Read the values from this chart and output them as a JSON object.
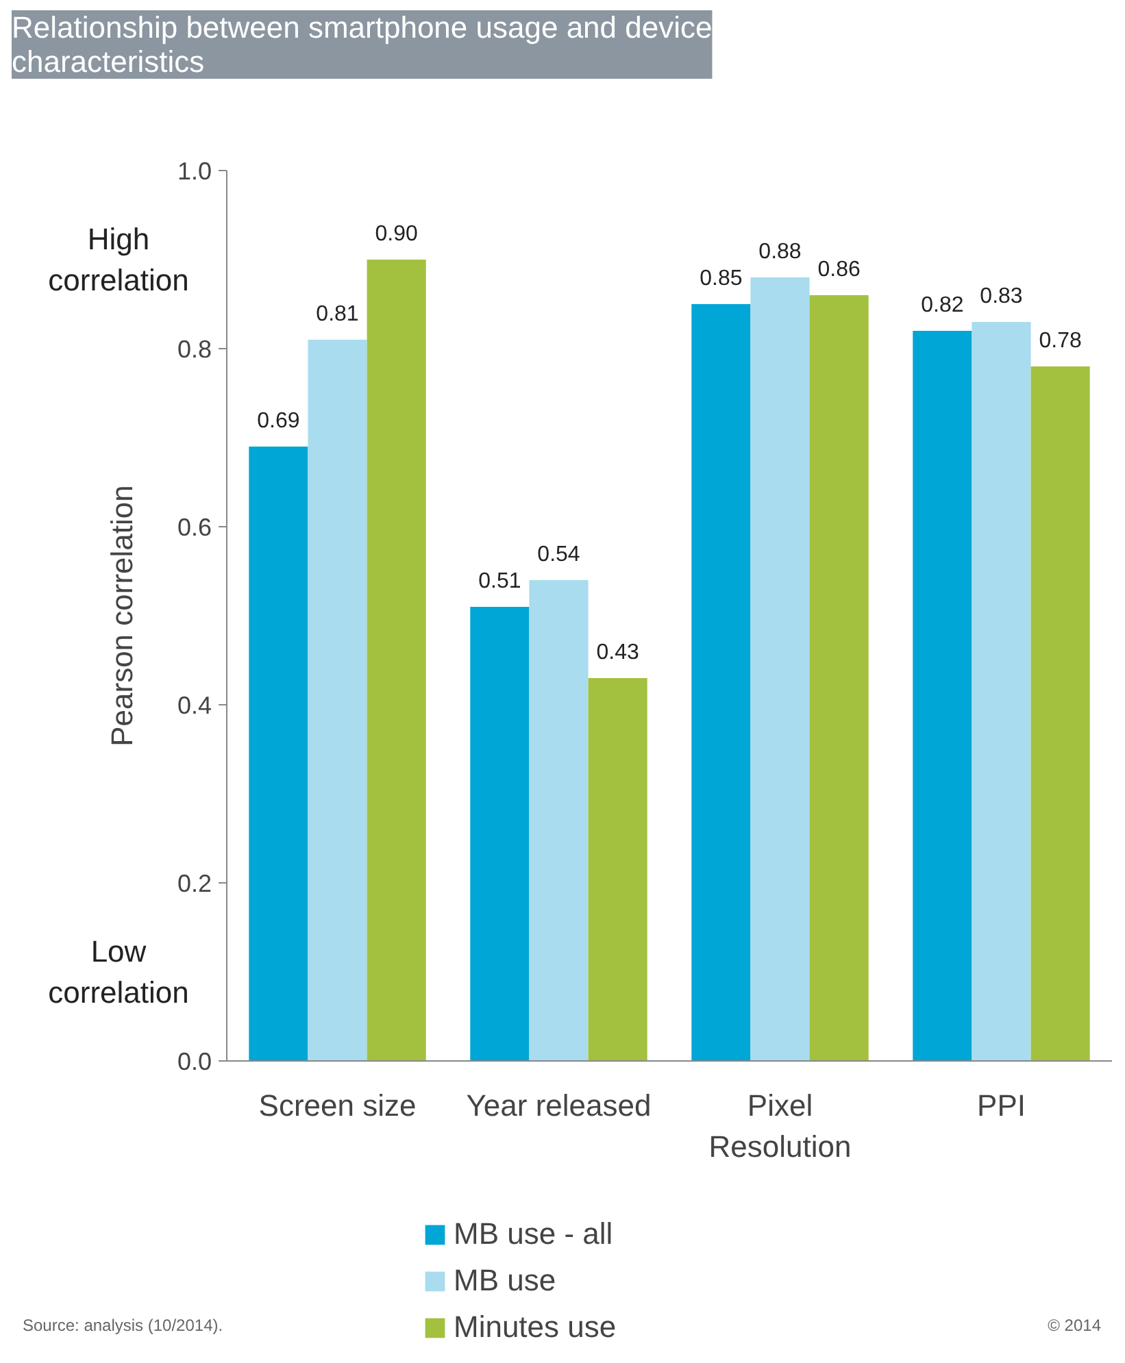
{
  "chart_data": {
    "type": "bar",
    "title": "Relationship between smartphone usage and device characteristics",
    "ylabel": "Pearson correlation",
    "categories": [
      "Screen size",
      "Year released",
      "Pixel Resolution",
      "PPI"
    ],
    "series": [
      {
        "name": "MB use - all",
        "color": "#00a6d6",
        "values": [
          0.69,
          0.51,
          0.85,
          0.82
        ],
        "value_labels": [
          "0.69",
          "0.51",
          "0.85",
          "0.82"
        ]
      },
      {
        "name": "MB use",
        "color": "#a8dcee",
        "values": [
          0.81,
          0.54,
          0.88,
          0.83
        ],
        "value_labels": [
          "0.81",
          "0.54",
          "0.88",
          "0.83"
        ]
      },
      {
        "name": "Minutes use",
        "color": "#a3c13f",
        "values": [
          0.9,
          0.43,
          0.86,
          0.78
        ],
        "value_labels": [
          "0.90",
          "0.43",
          "0.86",
          "0.78"
        ]
      }
    ],
    "ylim": [
      0,
      1.0
    ],
    "yticks": [
      {
        "value": 0,
        "label": "0.0"
      },
      0.2,
      0.4,
      0.6,
      0.8,
      {
        "value": 1.0,
        "label": "1.0"
      }
    ],
    "grid": false,
    "legend": "bottom",
    "annotations": [
      "High correlation",
      "Low correlation",
      "Source: analysis (10/2014).",
      "© 2014"
    ]
  }
}
